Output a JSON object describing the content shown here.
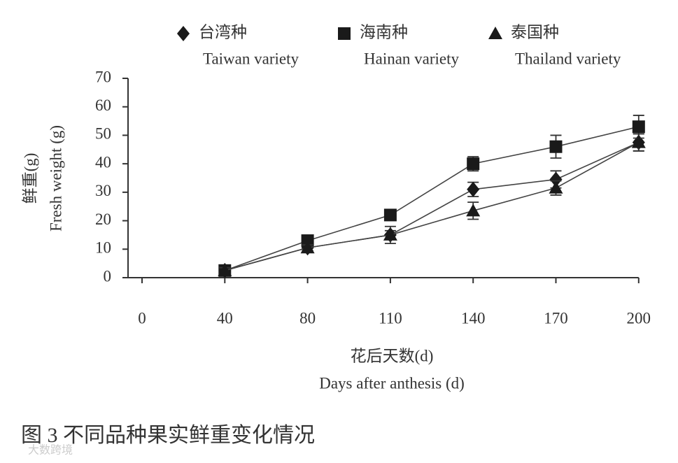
{
  "chart_data": {
    "type": "line",
    "y_label": [
      "鲜重(g)",
      "Fresh weight (g)"
    ],
    "x_label": [
      "花后天数(d)",
      "Days after anthesis (d)"
    ],
    "caption": "图 3 不同品种果实鲜重变化情况",
    "watermark": "大数跨境",
    "categories": [
      "0",
      "40",
      "80",
      "110",
      "140",
      "170",
      "200"
    ],
    "series": [
      {
        "name": "台湾种",
        "name_en": "Taiwan variety",
        "marker": "diamond",
        "color": "#1a1a1a",
        "values": [
          null,
          2.5,
          10.5,
          15,
          31,
          34.5,
          47.5
        ],
        "errors": [
          null,
          1,
          1,
          1.5,
          2.5,
          3,
          3
        ]
      },
      {
        "name": "海南种",
        "name_en": "Hainan variety",
        "marker": "square",
        "color": "#1a1a1a",
        "values": [
          null,
          2.5,
          13,
          22,
          40,
          46,
          53
        ],
        "errors": [
          null,
          1,
          1.5,
          1.5,
          2.5,
          4,
          4
        ]
      },
      {
        "name": "泰国种",
        "name_en": "Thailand variety",
        "marker": "triangle",
        "color": "#1a1a1a",
        "values": [
          null,
          2.5,
          10.5,
          15,
          23.5,
          31.5,
          47.5
        ],
        "errors": [
          null,
          1,
          1,
          3,
          3,
          2.5,
          3
        ]
      }
    ],
    "ylim": [
      0,
      70
    ],
    "yticks": [
      0,
      10,
      20,
      30,
      40,
      50,
      60,
      70
    ]
  }
}
